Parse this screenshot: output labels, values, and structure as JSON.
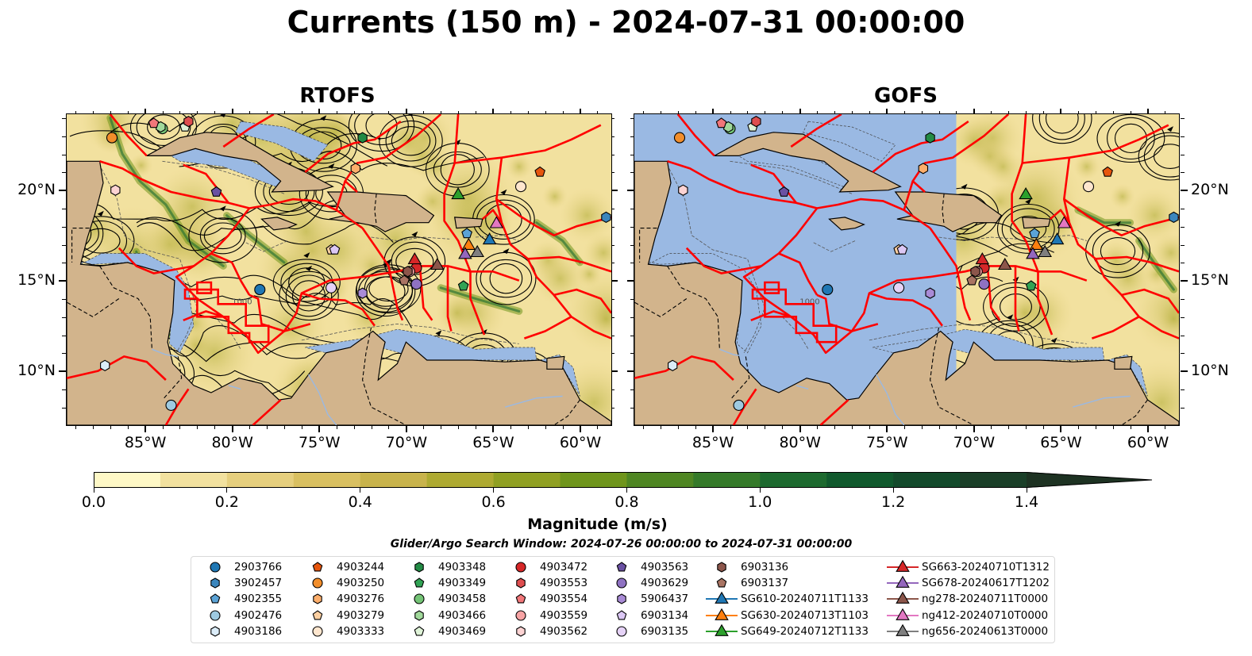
{
  "title": "Currents (150 m) - 2024-07-31 00:00:00",
  "panels": [
    {
      "name": "RTOFS"
    },
    {
      "name": "GOFS"
    }
  ],
  "axes": {
    "lon_labels": [
      "85°W",
      "80°W",
      "75°W",
      "70°W",
      "65°W",
      "60°W"
    ],
    "lat_labels": [
      "20°N",
      "15°N",
      "10°N"
    ],
    "lon_range": [
      -89.5,
      -58.2
    ],
    "lat_range": [
      7.0,
      24.2
    ]
  },
  "contour_label": "1000",
  "colorbar": {
    "label": "Magnitude (m/s)",
    "ticks": [
      "0.0",
      "0.2",
      "0.4",
      "0.6",
      "0.8",
      "1.0",
      "1.2",
      "1.4"
    ],
    "range": [
      0.0,
      1.5
    ],
    "colors": [
      "#fef8c6",
      "#f2e19f",
      "#e6cf7e",
      "#d9c061",
      "#c8b34c",
      "#aeaa32",
      "#90a023",
      "#6f951c",
      "#4f8623",
      "#357a2a",
      "#1d6a2f",
      "#10592d",
      "#134a2b",
      "#1a3f28",
      "#1d3222"
    ]
  },
  "search_window": "Glider/Argo Search Window: 2024-07-26 00:00:00 to 2024-07-31 00:00:00",
  "colors": {
    "land": "#d2b48c",
    "ocean": "#9ab9e3",
    "eez": "#ff0000"
  },
  "legend": {
    "columns": [
      [
        {
          "label": "2903766",
          "marker": "circle",
          "color": "#1f77b4"
        },
        {
          "label": "3902457",
          "marker": "hexagon",
          "color": "#3b86bd"
        },
        {
          "label": "4902355",
          "marker": "pentagon",
          "color": "#5ba3d6"
        },
        {
          "label": "4902476",
          "marker": "circle",
          "color": "#9ecae1"
        },
        {
          "label": "4903186",
          "marker": "hexagon",
          "color": "#dbecf8"
        }
      ],
      [
        {
          "label": "4903244",
          "marker": "pentagon",
          "color": "#e6550d"
        },
        {
          "label": "4903250",
          "marker": "circle",
          "color": "#f28e2b"
        },
        {
          "label": "4903276",
          "marker": "hexagon",
          "color": "#fdae6b"
        },
        {
          "label": "4903279",
          "marker": "pentagon",
          "color": "#fdd0a2"
        },
        {
          "label": "4903333",
          "marker": "circle",
          "color": "#fee6ce"
        }
      ],
      [
        {
          "label": "4903348",
          "marker": "hexagon",
          "color": "#238b45"
        },
        {
          "label": "4903349",
          "marker": "pentagon",
          "color": "#31a354"
        },
        {
          "label": "4903458",
          "marker": "circle",
          "color": "#74c476"
        },
        {
          "label": "4903466",
          "marker": "hexagon",
          "color": "#a1d99b"
        },
        {
          "label": "4903469",
          "marker": "pentagon",
          "color": "#dff3d8"
        }
      ],
      [
        {
          "label": "4903472",
          "marker": "circle",
          "color": "#d62728"
        },
        {
          "label": "4903553",
          "marker": "hexagon",
          "color": "#de4e4f"
        },
        {
          "label": "4903554",
          "marker": "pentagon",
          "color": "#f2777a"
        },
        {
          "label": "4903559",
          "marker": "circle",
          "color": "#f7a3a4"
        },
        {
          "label": "4903562",
          "marker": "hexagon",
          "color": "#fcd3d3"
        }
      ],
      [
        {
          "label": "4903563",
          "marker": "pentagon",
          "color": "#6a51a3"
        },
        {
          "label": "4903629",
          "marker": "circle",
          "color": "#8f72c2"
        },
        {
          "label": "5906437",
          "marker": "hexagon",
          "color": "#a98bd6"
        },
        {
          "label": "6903134",
          "marker": "pentagon",
          "color": "#dcc8f5"
        },
        {
          "label": "6903135",
          "marker": "circle",
          "color": "#e6d3f7"
        }
      ],
      [
        {
          "label": "6903136",
          "marker": "hexagon",
          "color": "#8c564b"
        },
        {
          "label": "6903137",
          "marker": "pentagon",
          "color": "#a97463"
        },
        {
          "label": "SG610-20240711T1133",
          "marker": "triangle",
          "color": "#1f77b4"
        },
        {
          "label": "SG630-20240713T1103",
          "marker": "triangle",
          "color": "#ff7f0e"
        },
        {
          "label": "SG649-20240712T1133",
          "marker": "triangle",
          "color": "#2ca02c"
        }
      ],
      [
        {
          "label": "SG663-20240710T1312",
          "marker": "triangle",
          "color": "#d62728"
        },
        {
          "label": "SG678-20240617T1202",
          "marker": "triangle",
          "color": "#9467bd"
        },
        {
          "label": "ng278-20240711T0000",
          "marker": "triangle",
          "color": "#8c564b"
        },
        {
          "label": "ng412-20240710T0000",
          "marker": "triangle",
          "color": "#e377c2"
        },
        {
          "label": "ng656-20240613T0000",
          "marker": "triangle",
          "color": "#7f7f7f"
        }
      ]
    ]
  },
  "observations": [
    {
      "id": "2903766",
      "lon": -78.4,
      "lat": 14.5
    },
    {
      "id": "3902457",
      "lon": -58.5,
      "lat": 18.5
    },
    {
      "id": "4902355",
      "lon": -66.5,
      "lat": 17.6
    },
    {
      "id": "4902476",
      "lon": -83.5,
      "lat": 8.1
    },
    {
      "id": "4903186",
      "lon": -87.3,
      "lat": 10.3
    },
    {
      "id": "4903244",
      "lon": -62.3,
      "lat": 21.0
    },
    {
      "id": "4903250",
      "lon": -86.9,
      "lat": 22.9
    },
    {
      "id": "4903276",
      "lon": -72.9,
      "lat": 21.2
    },
    {
      "id": "4903279",
      "lon": -74.3,
      "lat": 16.7
    },
    {
      "id": "4903333",
      "lon": -63.4,
      "lat": 20.2
    },
    {
      "id": "4903348",
      "lon": -72.5,
      "lat": 22.9
    },
    {
      "id": "4903349",
      "lon": -66.7,
      "lat": 14.7
    },
    {
      "id": "4903458",
      "lon": -84.0,
      "lat": 23.4
    },
    {
      "id": "4903466",
      "lon": -84.1,
      "lat": 23.5
    },
    {
      "id": "4903469",
      "lon": -82.7,
      "lat": 23.5
    },
    {
      "id": "4903472",
      "lon": -69.4,
      "lat": 15.7
    },
    {
      "id": "4903553",
      "lon": -82.5,
      "lat": 23.8
    },
    {
      "id": "4903554",
      "lon": -84.5,
      "lat": 23.7
    },
    {
      "id": "4903559",
      "lon": -69.8,
      "lat": 15.5
    },
    {
      "id": "4903562",
      "lon": -86.7,
      "lat": 20.0
    },
    {
      "id": "4903563",
      "lon": -80.9,
      "lat": 19.9
    },
    {
      "id": "4903629",
      "lon": -69.4,
      "lat": 14.8
    },
    {
      "id": "5906437",
      "lon": -72.5,
      "lat": 14.3
    },
    {
      "id": "6903134",
      "lon": -74.1,
      "lat": 16.7
    },
    {
      "id": "6903135",
      "lon": -74.3,
      "lat": 14.6
    },
    {
      "id": "6903136",
      "lon": -69.9,
      "lat": 15.5
    },
    {
      "id": "6903137",
      "lon": -70.1,
      "lat": 15.0
    },
    {
      "id": "SG610-20240711T1133",
      "lon": -65.2,
      "lat": 17.3
    },
    {
      "id": "SG630-20240713T1103",
      "lon": -66.4,
      "lat": 17.0
    },
    {
      "id": "SG649-20240712T1133",
      "lon": -67.0,
      "lat": 19.8
    },
    {
      "id": "SG663-20240710T1312",
      "lon": -69.5,
      "lat": 16.2
    },
    {
      "id": "SG678-20240617T1202",
      "lon": -66.6,
      "lat": 16.5
    },
    {
      "id": "ng278-20240711T0000",
      "lon": -68.2,
      "lat": 15.9
    },
    {
      "id": "ng412-20240710T0000",
      "lon": -64.8,
      "lat": 18.2
    },
    {
      "id": "ng656-20240613T0000",
      "lon": -65.9,
      "lat": 16.6
    }
  ]
}
